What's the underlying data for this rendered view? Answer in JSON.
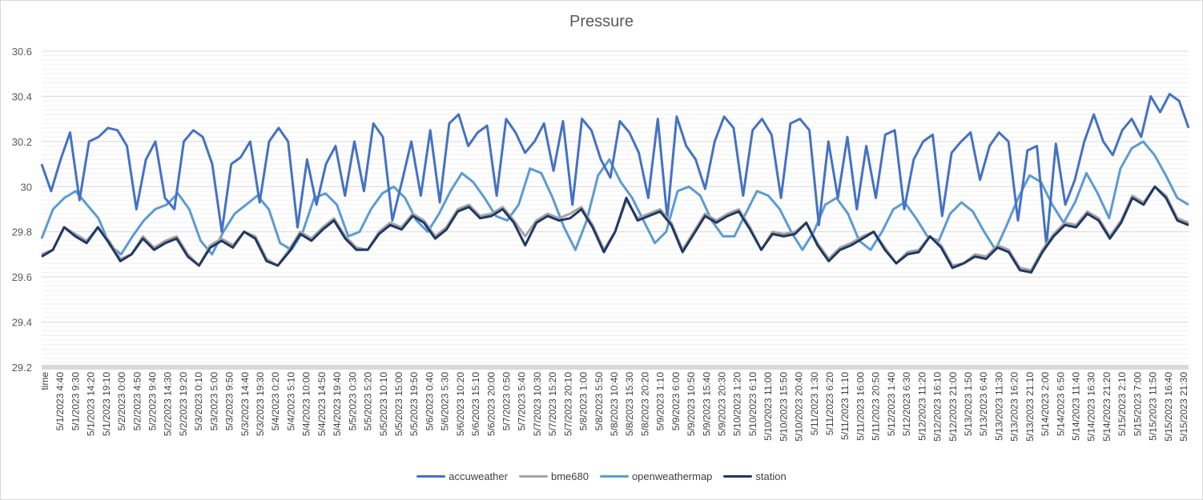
{
  "chart_data": {
    "type": "line",
    "title": "Pressure",
    "ylim": [
      29.2,
      30.6
    ],
    "yticks": [
      "30.6",
      "30.4",
      "30.2",
      "30",
      "29.8",
      "29.6",
      "29.4",
      "29.2"
    ],
    "minor_grid_step": 0.02,
    "grid": true,
    "legend_position": "bottom",
    "x_labels": [
      "time",
      "5/1/2023 4:40",
      "5/1/2023 9:30",
      "5/1/2023 14:20",
      "5/1/2023 19:10",
      "5/2/2023 0:00",
      "5/2/2023 4:50",
      "5/2/2023 9:40",
      "5/2/2023 14:30",
      "5/2/2023 19:20",
      "5/3/2023 0:10",
      "5/3/2023 5:00",
      "5/3/2023 9:50",
      "5/3/2023 14:40",
      "5/3/2023 19:30",
      "5/4/2023 0:20",
      "5/4/2023 5:10",
      "5/4/2023 10:00",
      "5/4/2023 14:50",
      "5/4/2023 19:40",
      "5/5/2023 0:30",
      "5/5/2023 5:20",
      "5/5/2023 10:10",
      "5/5/2023 15:00",
      "5/5/2023 19:50",
      "5/6/2023 0:40",
      "5/6/2023 5:30",
      "5/6/2023 10:20",
      "5/6/2023 15:10",
      "5/6/2023 20:00",
      "5/7/2023 0:50",
      "5/7/2023 5:40",
      "5/7/2023 10:30",
      "5/7/2023 15:20",
      "5/7/2023 20:10",
      "5/8/2023 1:00",
      "5/8/2023 5:50",
      "5/8/2023 10:40",
      "5/8/2023 15:30",
      "5/8/2023 20:20",
      "5/9/2023 1:10",
      "5/9/2023 6:00",
      "5/9/2023 10:50",
      "5/9/2023 15:40",
      "5/9/2023 20:30",
      "5/10/2023 1:20",
      "5/10/2023 6:10",
      "5/10/2023 11:00",
      "5/10/2023 15:50",
      "5/10/2023 20:40",
      "5/11/2023 1:30",
      "5/11/2023 6:20",
      "5/11/2023 11:10",
      "5/11/2023 16:00",
      "5/11/2023 20:50",
      "5/12/2023 1:40",
      "5/12/2023 6:30",
      "5/12/2023 11:20",
      "5/12/2023 16:10",
      "5/12/2023 21:00",
      "5/13/2023 1:50",
      "5/13/2023 6:40",
      "5/13/2023 11:30",
      "5/13/2023 16:20",
      "5/13/2023 21:10",
      "5/14/2023 2:00",
      "5/14/2023 6:50",
      "5/14/2023 11:40",
      "5/14/2023 16:30",
      "5/14/2023 21:20",
      "5/15/2023 2:10",
      "5/15/2023 7:00",
      "5/15/2023 11:50",
      "5/15/2023 16:40",
      "5/15/2023 21:30"
    ],
    "series": [
      {
        "name": "accuweather",
        "color": "#4472c4",
        "values": [
          30.1,
          29.98,
          30.12,
          30.24,
          29.94,
          30.2,
          30.22,
          30.26,
          30.25,
          30.18,
          29.9,
          30.12,
          30.2,
          29.95,
          29.9,
          30.2,
          30.25,
          30.22,
          30.1,
          29.8,
          30.1,
          30.13,
          30.2,
          29.93,
          30.2,
          30.26,
          30.2,
          29.82,
          30.12,
          29.92,
          30.1,
          30.18,
          29.96,
          30.2,
          29.98,
          30.28,
          30.22,
          29.85,
          30.02,
          30.2,
          29.96,
          30.25,
          29.93,
          30.28,
          30.32,
          30.18,
          30.24,
          30.27,
          29.96,
          30.3,
          30.24,
          30.15,
          30.2,
          30.28,
          30.07,
          30.29,
          29.92,
          30.3,
          30.25,
          30.12,
          30.04,
          30.29,
          30.24,
          30.15,
          29.95,
          30.3,
          29.86,
          30.31,
          30.18,
          30.12,
          29.99,
          30.2,
          30.31,
          30.26,
          29.96,
          30.25,
          30.3,
          30.23,
          29.95,
          30.28,
          30.3,
          30.25,
          29.83,
          30.2,
          29.95,
          30.22,
          29.9,
          30.18,
          29.95,
          30.23,
          30.25,
          29.9,
          30.12,
          30.2,
          30.23,
          29.87,
          30.15,
          30.2,
          30.24,
          30.03,
          30.18,
          30.24,
          30.2,
          29.85,
          30.16,
          30.18,
          29.74,
          30.19,
          29.92,
          30.03,
          30.2,
          30.32,
          30.2,
          30.14,
          30.25,
          30.3,
          30.22,
          30.4,
          30.33,
          30.41,
          30.38,
          30.26
        ]
      },
      {
        "name": "bme680",
        "color": "#a5a5a5",
        "values": [
          29.7,
          29.72,
          29.82,
          29.79,
          29.76,
          29.82,
          29.76,
          29.68,
          29.7,
          29.78,
          29.73,
          29.76,
          29.78,
          29.7,
          29.65,
          29.74,
          29.77,
          29.74,
          29.8,
          29.78,
          29.68,
          29.65,
          29.72,
          29.8,
          29.77,
          29.82,
          29.86,
          29.78,
          29.73,
          29.72,
          29.8,
          29.84,
          29.82,
          29.88,
          29.85,
          29.78,
          29.82,
          29.9,
          29.92,
          29.87,
          29.88,
          29.91,
          29.85,
          29.78,
          29.85,
          29.88,
          29.86,
          29.88,
          29.91,
          29.83,
          29.72,
          29.8,
          29.94,
          29.86,
          29.88,
          29.9,
          29.84,
          29.72,
          29.8,
          29.88,
          29.85,
          29.88,
          29.9,
          29.82,
          29.72,
          29.8,
          29.79,
          29.8,
          29.84,
          29.75,
          29.68,
          29.73,
          29.75,
          29.78,
          29.8,
          29.73,
          29.66,
          29.71,
          29.72,
          29.78,
          29.74,
          29.65,
          29.66,
          29.7,
          29.69,
          29.74,
          29.72,
          29.64,
          29.63,
          29.72,
          29.79,
          29.84,
          29.83,
          29.89,
          29.86,
          29.78,
          29.85,
          29.96,
          29.93,
          30.0,
          29.96,
          29.86,
          29.84
        ]
      },
      {
        "name": "openweathermap",
        "color": "#5b9bd5",
        "values": [
          29.77,
          29.9,
          29.95,
          29.98,
          29.92,
          29.86,
          29.74,
          29.7,
          29.78,
          29.85,
          29.9,
          29.92,
          29.97,
          29.9,
          29.76,
          29.7,
          29.8,
          29.88,
          29.92,
          29.96,
          29.9,
          29.75,
          29.72,
          29.8,
          29.95,
          29.97,
          29.92,
          29.78,
          29.8,
          29.9,
          29.97,
          30.0,
          29.95,
          29.85,
          29.8,
          29.88,
          29.98,
          30.06,
          30.02,
          29.95,
          29.87,
          29.85,
          29.92,
          30.08,
          30.06,
          29.95,
          29.82,
          29.72,
          29.85,
          30.05,
          30.12,
          30.02,
          29.95,
          29.85,
          29.75,
          29.8,
          29.98,
          30.0,
          29.96,
          29.85,
          29.78,
          29.78,
          29.88,
          29.98,
          29.96,
          29.9,
          29.8,
          29.72,
          29.8,
          29.92,
          29.95,
          29.88,
          29.76,
          29.72,
          29.8,
          29.9,
          29.93,
          29.86,
          29.78,
          29.76,
          29.88,
          29.93,
          29.89,
          29.8,
          29.72,
          29.83,
          29.95,
          30.05,
          30.02,
          29.92,
          29.84,
          29.93,
          30.06,
          29.97,
          29.86,
          30.08,
          30.17,
          30.2,
          30.14,
          30.05,
          29.95,
          29.92
        ]
      },
      {
        "name": "station",
        "color": "#203864",
        "values": [
          29.69,
          29.72,
          29.82,
          29.78,
          29.75,
          29.82,
          29.75,
          29.67,
          29.7,
          29.77,
          29.72,
          29.75,
          29.77,
          29.69,
          29.65,
          29.73,
          29.76,
          29.73,
          29.8,
          29.77,
          29.67,
          29.65,
          29.71,
          29.79,
          29.76,
          29.81,
          29.85,
          29.77,
          29.72,
          29.72,
          29.79,
          29.83,
          29.81,
          29.87,
          29.84,
          29.77,
          29.81,
          29.89,
          29.91,
          29.86,
          29.87,
          29.9,
          29.84,
          29.74,
          29.84,
          29.87,
          29.85,
          29.86,
          29.9,
          29.82,
          29.71,
          29.8,
          29.95,
          29.85,
          29.87,
          29.89,
          29.83,
          29.71,
          29.79,
          29.87,
          29.84,
          29.87,
          29.89,
          29.81,
          29.72,
          29.79,
          29.78,
          29.79,
          29.84,
          29.74,
          29.67,
          29.72,
          29.74,
          29.77,
          29.8,
          29.72,
          29.66,
          29.7,
          29.71,
          29.78,
          29.73,
          29.64,
          29.66,
          29.69,
          29.68,
          29.73,
          29.71,
          29.63,
          29.62,
          29.71,
          29.78,
          29.83,
          29.82,
          29.88,
          29.85,
          29.77,
          29.84,
          29.95,
          29.92,
          30.0,
          29.95,
          29.85,
          29.83
        ]
      }
    ]
  }
}
